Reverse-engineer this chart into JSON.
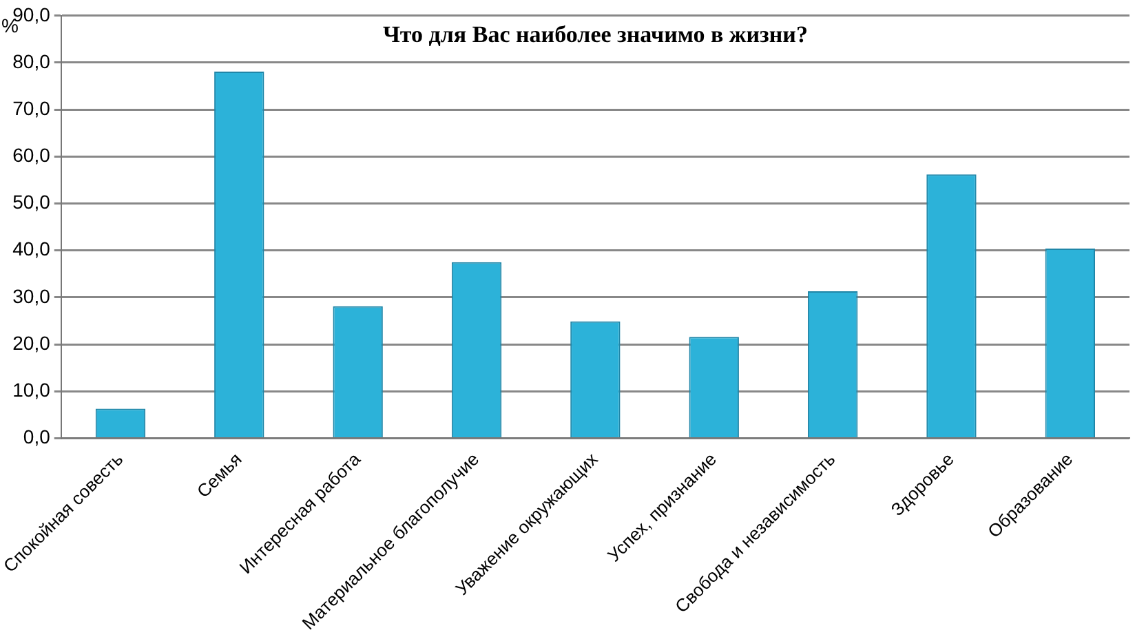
{
  "chart_data": {
    "type": "bar",
    "title": "Что для Вас наиболее значимо в жизни?",
    "ylabel": "%",
    "categories": [
      "Спокойная совесть",
      "Семья",
      "Интересная работа",
      "Материальное благополучие",
      "Уважение окружающих",
      "Успех, признание",
      "Свобода и независимость",
      "Здоровье",
      "Образование"
    ],
    "values": [
      6.3,
      78.1,
      28.1,
      37.5,
      24.9,
      21.6,
      31.3,
      56.2,
      40.4
    ],
    "color": "#2cb2d9",
    "ylim": [
      0,
      90
    ],
    "yticks": [
      {
        "value": 0,
        "label": "0,0"
      },
      {
        "value": 10,
        "label": "10,0"
      },
      {
        "value": 20,
        "label": "20,0"
      },
      {
        "value": 30,
        "label": "30,0"
      },
      {
        "value": 40,
        "label": "40,0"
      },
      {
        "value": 50,
        "label": "50,0"
      },
      {
        "value": 60,
        "label": "60,0"
      },
      {
        "value": 70,
        "label": "70,0"
      },
      {
        "value": 80,
        "label": "80,0"
      },
      {
        "value": 90,
        "label": "90,0"
      }
    ],
    "grid": "y",
    "legend": false
  }
}
